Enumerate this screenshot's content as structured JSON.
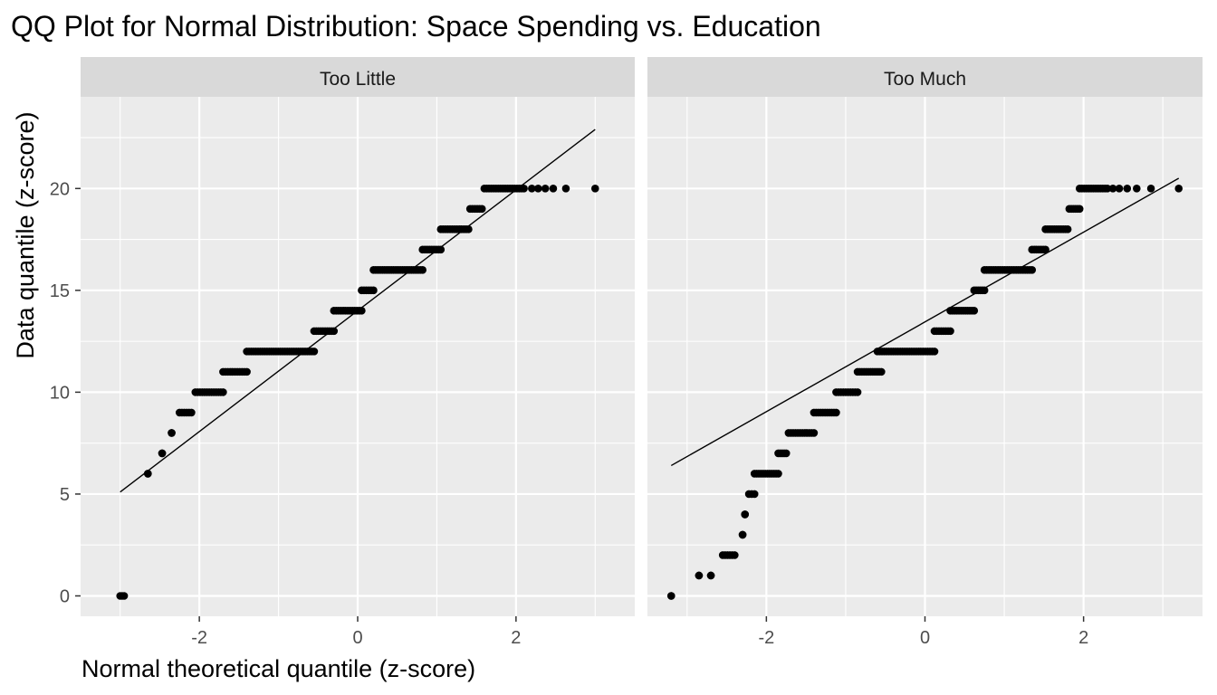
{
  "chart_data": {
    "type": "scatter",
    "title": "QQ Plot for Normal Distribution: Space Spending vs. Education",
    "xlabel": "Normal theoretical quantile (z-score)",
    "ylabel": "Data quantile (z-score)",
    "xlim": [
      -3.5,
      3.5
    ],
    "ylim": [
      -1,
      24.5
    ],
    "x_ticks": [
      -2,
      0,
      2
    ],
    "x_tick_labels": [
      "-2",
      "0",
      "2"
    ],
    "y_ticks": [
      0,
      5,
      10,
      15,
      20
    ],
    "y_tick_labels": [
      "0",
      "5",
      "10",
      "15",
      "20"
    ],
    "grid": true,
    "legend": "none",
    "colors": {
      "panel_bg": "#ebebeb",
      "strip_bg": "#d9d9d9",
      "grid": "#ffffff",
      "point": "#000000",
      "line": "#000000",
      "axis_text": "#4d4d4d",
      "title_text": "#000000"
    },
    "panels": [
      {
        "name": "Too Little",
        "ref_line": {
          "x": [
            -3.0,
            3.0
          ],
          "y": [
            5.1,
            22.9
          ]
        },
        "segments": [
          {
            "y": 0,
            "x0": -3.0,
            "x1": -2.95
          },
          {
            "y": 6,
            "x0": -2.65,
            "x1": -2.65
          },
          {
            "y": 7,
            "x0": -2.47,
            "x1": -2.47
          },
          {
            "y": 8,
            "x0": -2.35,
            "x1": -2.35
          },
          {
            "y": 9,
            "x0": -2.25,
            "x1": -2.1
          },
          {
            "y": 10,
            "x0": -2.05,
            "x1": -1.7
          },
          {
            "y": 11,
            "x0": -1.7,
            "x1": -1.4
          },
          {
            "y": 12,
            "x0": -1.4,
            "x1": -0.55
          },
          {
            "y": 13,
            "x0": -0.55,
            "x1": -0.3
          },
          {
            "y": 14,
            "x0": -0.3,
            "x1": 0.05
          },
          {
            "y": 15,
            "x0": 0.05,
            "x1": 0.2
          },
          {
            "y": 16,
            "x0": 0.2,
            "x1": 0.82
          },
          {
            "y": 17,
            "x0": 0.82,
            "x1": 1.05
          },
          {
            "y": 18,
            "x0": 1.05,
            "x1": 1.4
          },
          {
            "y": 19,
            "x0": 1.42,
            "x1": 1.57
          },
          {
            "y": 20,
            "x0": 1.6,
            "x1": 2.1
          }
        ],
        "points": [
          {
            "x": 2.2,
            "y": 20
          },
          {
            "x": 2.28,
            "y": 20
          },
          {
            "x": 2.37,
            "y": 20
          },
          {
            "x": 2.47,
            "y": 20
          },
          {
            "x": 2.63,
            "y": 20
          },
          {
            "x": 3.0,
            "y": 20
          }
        ]
      },
      {
        "name": "Too Much",
        "ref_line": {
          "x": [
            -3.2,
            3.2
          ],
          "y": [
            6.4,
            20.5
          ]
        },
        "segments": [
          {
            "y": 0,
            "x0": -3.2,
            "x1": -3.2
          },
          {
            "y": 1,
            "x0": -2.85,
            "x1": -2.85
          },
          {
            "y": 1,
            "x0": -2.7,
            "x1": -2.7
          },
          {
            "y": 2,
            "x0": -2.55,
            "x1": -2.4
          },
          {
            "y": 3,
            "x0": -2.3,
            "x1": -2.3
          },
          {
            "y": 4,
            "x0": -2.27,
            "x1": -2.27
          },
          {
            "y": 5,
            "x0": -2.22,
            "x1": -2.15
          },
          {
            "y": 6,
            "x0": -2.15,
            "x1": -1.85
          },
          {
            "y": 7,
            "x0": -1.85,
            "x1": -1.75
          },
          {
            "y": 8,
            "x0": -1.72,
            "x1": -1.4
          },
          {
            "y": 9,
            "x0": -1.4,
            "x1": -1.12
          },
          {
            "y": 10,
            "x0": -1.12,
            "x1": -0.85
          },
          {
            "y": 11,
            "x0": -0.85,
            "x1": -0.55
          },
          {
            "y": 12,
            "x0": -0.6,
            "x1": 0.12
          },
          {
            "y": 13,
            "x0": 0.12,
            "x1": 0.32
          },
          {
            "y": 14,
            "x0": 0.32,
            "x1": 0.62
          },
          {
            "y": 15,
            "x0": 0.62,
            "x1": 0.75
          },
          {
            "y": 16,
            "x0": 0.75,
            "x1": 1.35
          },
          {
            "y": 17,
            "x0": 1.35,
            "x1": 1.52
          },
          {
            "y": 18,
            "x0": 1.52,
            "x1": 1.8
          },
          {
            "y": 19,
            "x0": 1.82,
            "x1": 1.95
          },
          {
            "y": 20,
            "x0": 1.95,
            "x1": 2.3
          }
        ],
        "points": [
          {
            "x": 2.37,
            "y": 20
          },
          {
            "x": 2.45,
            "y": 20
          },
          {
            "x": 2.55,
            "y": 20
          },
          {
            "x": 2.67,
            "y": 20
          },
          {
            "x": 2.85,
            "y": 20
          },
          {
            "x": 3.2,
            "y": 20
          }
        ]
      }
    ]
  }
}
